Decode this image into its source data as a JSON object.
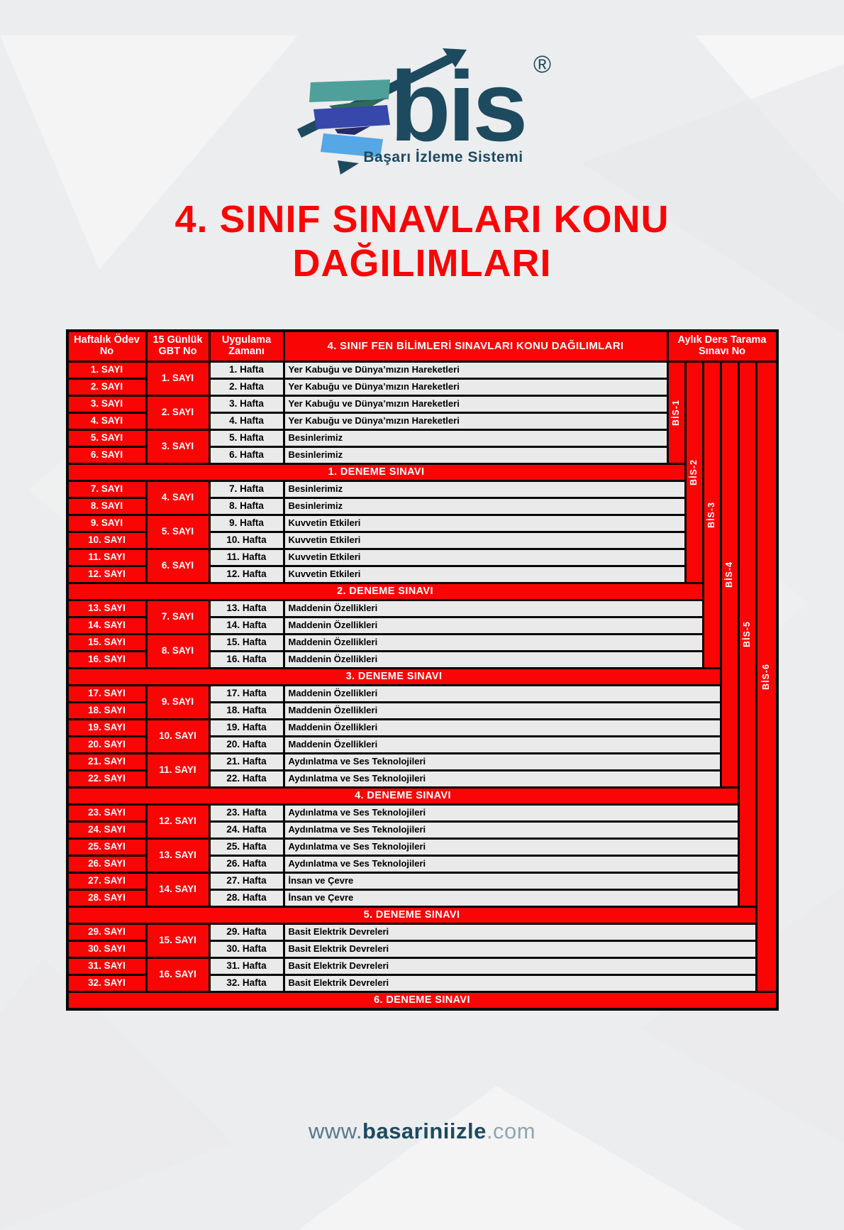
{
  "logo": {
    "text": "bis",
    "registered": "®",
    "tagline": "Başarı İzleme Sistemi"
  },
  "title": {
    "line1": "4. SINIF SINAVLARI KONU",
    "line2": "DAĞILIMLARI"
  },
  "table": {
    "headers": {
      "weekly_homework": "Haftalık Ödev No",
      "gbt": "15 Günlük GBT No",
      "application_time": "Uygulama Zamanı",
      "topics": "4. SINIF FEN BİLİMLERİ SINAVLARI KONU DAĞILIMLARI",
      "monthly_scan": "Aylık Ders Tarama Sınavı No"
    },
    "weeks": [
      {
        "sayi": "1. SAYI",
        "hafta": "1. Hafta",
        "topic": "Yer Kabuğu ve Dünya’mızın Hareketleri"
      },
      {
        "sayi": "2. SAYI",
        "hafta": "2. Hafta",
        "topic": "Yer Kabuğu ve Dünya’mızın Hareketleri"
      },
      {
        "sayi": "3. SAYI",
        "hafta": "3. Hafta",
        "topic": "Yer Kabuğu ve Dünya’mızın Hareketleri"
      },
      {
        "sayi": "4. SAYI",
        "hafta": "4. Hafta",
        "topic": "Yer Kabuğu ve Dünya’mızın Hareketleri"
      },
      {
        "sayi": "5. SAYI",
        "hafta": "5. Hafta",
        "topic": "Besinlerimiz"
      },
      {
        "sayi": "6. SAYI",
        "hafta": "6. Hafta",
        "topic": "Besinlerimiz"
      },
      {
        "sayi": "7. SAYI",
        "hafta": "7. Hafta",
        "topic": "Besinlerimiz"
      },
      {
        "sayi": "8. SAYI",
        "hafta": "8. Hafta",
        "topic": "Besinlerimiz"
      },
      {
        "sayi": "9. SAYI",
        "hafta": "9. Hafta",
        "topic": "Kuvvetin Etkileri"
      },
      {
        "sayi": "10. SAYI",
        "hafta": "10. Hafta",
        "topic": "Kuvvetin Etkileri"
      },
      {
        "sayi": "11. SAYI",
        "hafta": "11. Hafta",
        "topic": "Kuvvetin Etkileri"
      },
      {
        "sayi": "12. SAYI",
        "hafta": "12. Hafta",
        "topic": "Kuvvetin Etkileri"
      },
      {
        "sayi": "13. SAYI",
        "hafta": "13. Hafta",
        "topic": "Maddenin Özellikleri"
      },
      {
        "sayi": "14. SAYI",
        "hafta": "14. Hafta",
        "topic": "Maddenin Özellikleri"
      },
      {
        "sayi": "15. SAYI",
        "hafta": "15. Hafta",
        "topic": "Maddenin Özellikleri"
      },
      {
        "sayi": "16. SAYI",
        "hafta": "16. Hafta",
        "topic": "Maddenin Özellikleri"
      },
      {
        "sayi": "17. SAYI",
        "hafta": "17. Hafta",
        "topic": "Maddenin Özellikleri"
      },
      {
        "sayi": "18. SAYI",
        "hafta": "18. Hafta",
        "topic": "Maddenin Özellikleri"
      },
      {
        "sayi": "19. SAYI",
        "hafta": "19. Hafta",
        "topic": "Maddenin Özellikleri"
      },
      {
        "sayi": "20. SAYI",
        "hafta": "20. Hafta",
        "topic": "Maddenin Özellikleri"
      },
      {
        "sayi": "21. SAYI",
        "hafta": "21. Hafta",
        "topic": "Aydınlatma ve Ses Teknolojileri"
      },
      {
        "sayi": "22. SAYI",
        "hafta": "22. Hafta",
        "topic": "Aydınlatma ve Ses Teknolojileri"
      },
      {
        "sayi": "23. SAYI",
        "hafta": "23. Hafta",
        "topic": "Aydınlatma ve Ses Teknolojileri"
      },
      {
        "sayi": "24. SAYI",
        "hafta": "24. Hafta",
        "topic": "Aydınlatma ve Ses Teknolojileri"
      },
      {
        "sayi": "25. SAYI",
        "hafta": "25. Hafta",
        "topic": "Aydınlatma ve Ses Teknolojileri"
      },
      {
        "sayi": "26. SAYI",
        "hafta": "26. Hafta",
        "topic": "Aydınlatma ve Ses Teknolojileri"
      },
      {
        "sayi": "27. SAYI",
        "hafta": "27. Hafta",
        "topic": "İnsan ve Çevre"
      },
      {
        "sayi": "28. SAYI",
        "hafta": "28. Hafta",
        "topic": "İnsan ve Çevre"
      },
      {
        "sayi": "29. SAYI",
        "hafta": "29. Hafta",
        "topic": "Basit Elektrik Devreleri"
      },
      {
        "sayi": "30. SAYI",
        "hafta": "30. Hafta",
        "topic": "Basit Elektrik Devreleri"
      },
      {
        "sayi": "31. SAYI",
        "hafta": "31. Hafta",
        "topic": "Basit Elektrik Devreleri"
      },
      {
        "sayi": "32. SAYI",
        "hafta": "32. Hafta",
        "topic": "Basit Elektrik Devreleri"
      }
    ],
    "gbt_numbers": [
      "1. SAYI",
      "2. SAYI",
      "3. SAYI",
      "4. SAYI",
      "5. SAYI",
      "6. SAYI",
      "7. SAYI",
      "8. SAYI",
      "9. SAYI",
      "10. SAYI",
      "11. SAYI",
      "12. SAYI",
      "13. SAYI",
      "14. SAYI",
      "15. SAYI",
      "16. SAYI"
    ],
    "denemes": [
      "1. DENEME SINAVI",
      "2. DENEME SINAVI",
      "3. DENEME SINAVI",
      "4. DENEME SINAVI",
      "5. DENEME SINAVI",
      "6. DENEME SINAVI"
    ],
    "deneme_after_weeks": [
      6,
      12,
      16,
      22,
      28,
      32
    ],
    "bis_columns": [
      "BİS-1",
      "BİS-2",
      "BİS-3",
      "BİS-4",
      "BİS-5",
      "BİS-6"
    ]
  },
  "footer": {
    "www": "www.",
    "name": "basariniizle",
    "com": ".com"
  },
  "colors": {
    "red": "#fa0505",
    "dark": "#1d4a5f",
    "teal": "#4fa09a",
    "green": "#2e6b57",
    "blue": "#3847ab",
    "navy": "#262a66",
    "lightblue": "#55a7e6",
    "cellbg": "#eaeaea",
    "pagebg": "#ecedee"
  }
}
